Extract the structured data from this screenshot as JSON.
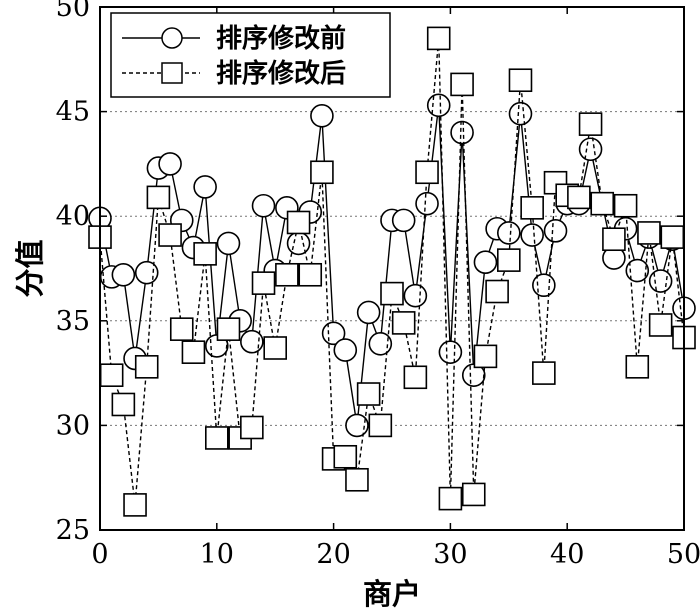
{
  "chart_data": {
    "type": "line",
    "xlabel": "商户",
    "ylabel": "分值",
    "xlim": [
      0,
      50
    ],
    "ylim": [
      25,
      50
    ],
    "xticks": [
      0,
      10,
      20,
      30,
      40,
      50
    ],
    "yticks": [
      25,
      30,
      35,
      40,
      45,
      50
    ],
    "grid": "horizontal dotted",
    "legend_position": "top-left",
    "series": [
      {
        "name": "排序修改前",
        "marker": "circle",
        "line_style": "solid",
        "color": "#000000",
        "x": [
          0,
          1,
          2,
          3,
          4,
          5,
          6,
          7,
          8,
          9,
          10,
          11,
          12,
          13,
          14,
          15,
          16,
          17,
          18,
          19,
          20,
          21,
          22,
          23,
          24,
          25,
          26,
          27,
          28,
          29,
          30,
          31,
          32,
          33,
          34,
          35,
          36,
          37,
          38,
          39,
          40,
          41,
          42,
          43,
          44,
          45,
          46,
          47,
          48,
          49,
          50
        ],
        "values": [
          39.9,
          37.1,
          37.2,
          33.2,
          37.3,
          42.3,
          42.5,
          39.8,
          38.5,
          41.4,
          33.8,
          38.7,
          35.0,
          34.0,
          40.5,
          37.4,
          40.4,
          38.7,
          40.2,
          44.8,
          34.4,
          33.6,
          30.0,
          35.4,
          33.9,
          39.8,
          39.8,
          36.2,
          40.6,
          45.3,
          33.5,
          44.0,
          32.4,
          37.8,
          39.4,
          39.2,
          44.9,
          39.1,
          36.7,
          39.3,
          40.6,
          40.6,
          43.2,
          40.6,
          38.0,
          39.4,
          37.4,
          39.0,
          36.9,
          38.9,
          35.6
        ]
      },
      {
        "name": "排序修改后",
        "marker": "square",
        "line_style": "dashed",
        "color": "#000000",
        "x": [
          0,
          1,
          2,
          3,
          4,
          5,
          6,
          7,
          8,
          9,
          10,
          11,
          12,
          13,
          14,
          15,
          16,
          17,
          18,
          19,
          20,
          21,
          22,
          23,
          24,
          25,
          26,
          27,
          28,
          29,
          30,
          31,
          32,
          33,
          34,
          35,
          36,
          37,
          38,
          39,
          40,
          41,
          42,
          43,
          44,
          45,
          46,
          47,
          48,
          49,
          50
        ],
        "values": [
          39.0,
          32.4,
          31.0,
          26.2,
          32.8,
          40.9,
          39.1,
          34.6,
          33.5,
          38.2,
          29.4,
          34.6,
          29.4,
          29.9,
          36.8,
          33.7,
          37.2,
          39.7,
          37.2,
          42.1,
          28.4,
          28.5,
          27.4,
          31.5,
          30.0,
          36.3,
          34.9,
          32.3,
          42.1,
          48.5,
          26.5,
          46.3,
          26.7,
          33.3,
          36.4,
          37.9,
          46.5,
          40.4,
          32.5,
          41.6,
          41.0,
          40.9,
          44.4,
          40.6,
          38.9,
          40.5,
          32.8,
          39.2,
          34.8,
          39.0,
          34.2
        ]
      }
    ]
  }
}
